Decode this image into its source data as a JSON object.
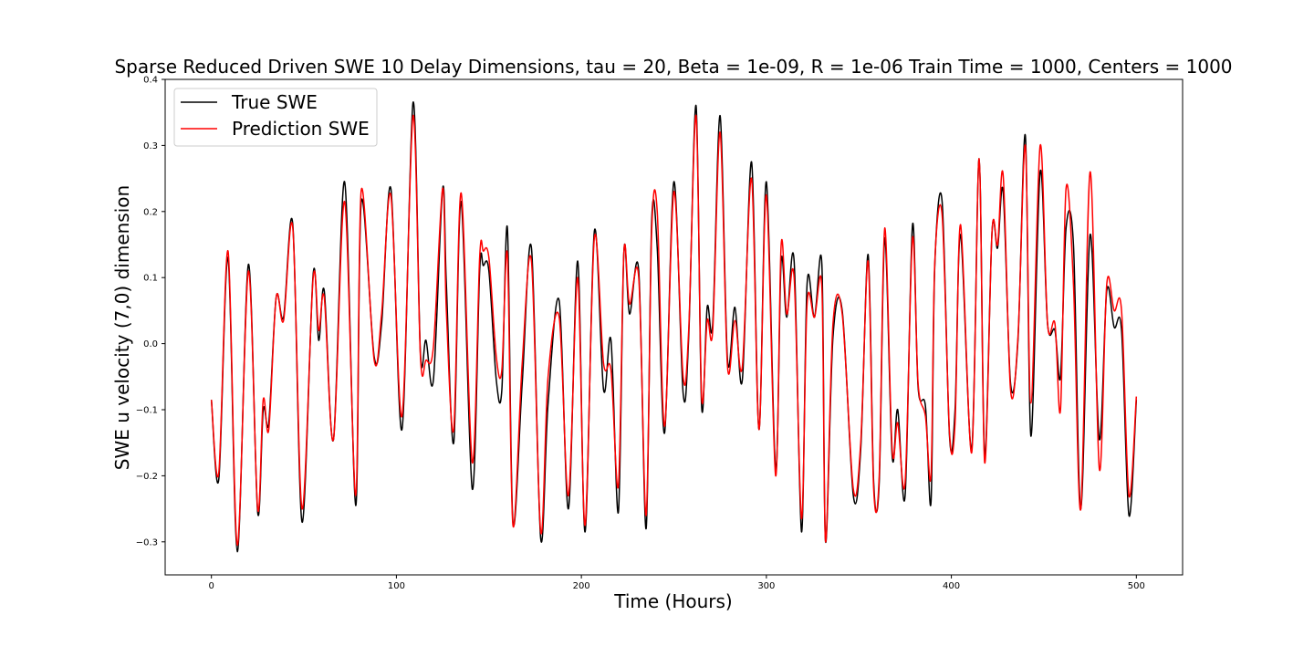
{
  "chart_data": {
    "type": "line",
    "title": "Sparse Reduced Driven SWE 10 Delay Dimensions, tau = 20, Beta = 1e-09, R = 1e-06 Train Time = 1000, Centers = 1000",
    "xlabel": "Time (Hours)",
    "ylabel": "SWE u velocity (7,0) dimension",
    "xlim": [
      -25,
      525
    ],
    "ylim": [
      -0.35,
      0.4
    ],
    "xticks": [
      0,
      100,
      200,
      300,
      400,
      500
    ],
    "yticks": [
      -0.3,
      -0.2,
      -0.1,
      0.0,
      0.1,
      0.2,
      0.3,
      0.4
    ],
    "ytick_labels": [
      "−0.3",
      "−0.2",
      "−0.1",
      "0.0",
      "0.1",
      "0.2",
      "0.3",
      "0.4"
    ],
    "grid": false,
    "legend": {
      "position": "top-left"
    },
    "colors": {
      "true": "#000000",
      "prediction": "#ff0000"
    },
    "series": [
      {
        "name": "True SWE",
        "key": "true",
        "x": [
          0,
          4,
          9,
          14,
          20,
          25,
          28,
          31,
          35,
          39,
          44,
          49,
          55,
          58,
          61,
          66,
          72,
          78,
          81,
          88,
          92,
          97,
          103,
          109,
          113,
          116,
          120,
          125,
          127,
          131,
          135,
          141,
          145,
          147,
          150,
          154,
          157,
          160,
          163,
          168,
          173,
          178,
          182,
          188,
          193,
          198,
          202,
          207,
          212,
          216,
          220,
          223,
          226,
          231,
          235,
          238,
          241,
          245,
          250,
          255,
          258,
          262,
          265,
          268,
          271,
          275,
          279,
          283,
          287,
          292,
          296,
          300,
          305,
          308,
          311,
          315,
          319,
          322,
          326,
          330,
          332,
          336,
          341,
          347,
          351,
          355,
          358,
          361,
          364,
          368,
          371,
          375,
          379,
          382,
          386,
          389,
          391,
          395,
          399,
          402,
          405,
          411,
          415,
          418,
          422,
          425,
          428,
          432,
          436,
          440,
          443,
          448,
          452,
          456,
          459,
          462,
          466,
          470,
          475,
          480,
          484,
          488,
          492,
          496,
          500
        ],
        "y": [
          -0.085,
          -0.205,
          0.13,
          -0.315,
          0.12,
          -0.255,
          -0.1,
          -0.12,
          0.07,
          0.04,
          0.18,
          -0.27,
          0.105,
          0.005,
          0.08,
          -0.145,
          0.245,
          -0.245,
          0.215,
          -0.02,
          0.03,
          0.235,
          -0.13,
          0.365,
          -0.015,
          0.005,
          -0.055,
          0.235,
          0.09,
          -0.15,
          0.215,
          -0.22,
          0.11,
          0.118,
          0.11,
          -0.055,
          -0.07,
          0.175,
          -0.27,
          -0.06,
          0.145,
          -0.295,
          -0.09,
          0.065,
          -0.25,
          0.125,
          -0.285,
          0.17,
          -0.07,
          0.005,
          -0.255,
          0.14,
          0.045,
          0.11,
          -0.28,
          0.185,
          0.145,
          -0.135,
          0.245,
          -0.075,
          0.01,
          0.36,
          -0.095,
          0.055,
          0.03,
          0.345,
          -0.025,
          0.055,
          -0.055,
          0.275,
          -0.13,
          0.245,
          -0.19,
          0.125,
          0.04,
          0.125,
          -0.285,
          0.09,
          0.04,
          0.12,
          -0.3,
          0.01,
          0.05,
          -0.23,
          -0.16,
          0.135,
          -0.21,
          -0.21,
          0.16,
          -0.17,
          -0.1,
          -0.23,
          0.18,
          -0.065,
          -0.095,
          -0.24,
          0.115,
          0.215,
          -0.14,
          -0.1,
          0.165,
          -0.16,
          0.28,
          -0.17,
          0.17,
          0.145,
          0.23,
          -0.06,
          0.005,
          0.315,
          -0.14,
          0.26,
          0.03,
          0.02,
          -0.05,
          0.175,
          0.15,
          -0.25,
          0.165,
          -0.145,
          0.08,
          0.025,
          0.02,
          -0.26,
          -0.085
        ]
      },
      {
        "name": "Prediction SWE",
        "key": "prediction",
        "x": [
          0,
          4,
          9,
          14,
          20,
          25,
          28,
          31,
          35,
          39,
          44,
          49,
          55,
          58,
          61,
          66,
          72,
          78,
          81,
          88,
          92,
          97,
          103,
          109,
          113,
          116,
          120,
          125,
          127,
          131,
          135,
          141,
          145,
          147,
          150,
          154,
          157,
          160,
          163,
          168,
          173,
          178,
          182,
          188,
          193,
          198,
          202,
          207,
          212,
          216,
          220,
          223,
          226,
          231,
          235,
          238,
          241,
          245,
          250,
          255,
          258,
          262,
          265,
          268,
          271,
          275,
          279,
          283,
          287,
          292,
          296,
          300,
          305,
          308,
          311,
          315,
          319,
          322,
          326,
          330,
          332,
          336,
          341,
          347,
          351,
          355,
          358,
          361,
          364,
          368,
          371,
          375,
          379,
          382,
          386,
          389,
          391,
          395,
          399,
          402,
          405,
          411,
          415,
          418,
          422,
          425,
          428,
          432,
          436,
          440,
          443,
          448,
          452,
          456,
          459,
          462,
          466,
          470,
          475,
          480,
          484,
          488,
          492,
          496,
          500
        ],
        "y": [
          -0.085,
          -0.195,
          0.14,
          -0.305,
          0.11,
          -0.25,
          -0.085,
          -0.13,
          0.07,
          0.035,
          0.175,
          -0.25,
          0.1,
          0.02,
          0.07,
          -0.145,
          0.215,
          -0.23,
          0.232,
          -0.025,
          0.045,
          0.225,
          -0.11,
          0.345,
          -0.02,
          -0.025,
          -0.005,
          0.235,
          0.05,
          -0.13,
          0.228,
          -0.18,
          0.13,
          0.14,
          0.13,
          -0.02,
          -0.04,
          0.135,
          -0.275,
          -0.03,
          0.125,
          -0.285,
          -0.05,
          0.04,
          -0.23,
          0.1,
          -0.275,
          0.16,
          -0.03,
          -0.04,
          -0.215,
          0.14,
          0.06,
          0.1,
          -0.26,
          0.17,
          0.2,
          -0.125,
          0.23,
          -0.05,
          0.02,
          0.345,
          -0.08,
          0.035,
          0.02,
          0.32,
          -0.035,
          0.035,
          -0.035,
          0.25,
          -0.13,
          0.225,
          -0.2,
          0.15,
          0.045,
          0.1,
          -0.265,
          0.06,
          0.04,
          0.085,
          -0.3,
          0.03,
          0.045,
          -0.22,
          -0.15,
          0.125,
          -0.22,
          -0.2,
          0.175,
          -0.16,
          -0.12,
          -0.21,
          0.16,
          -0.06,
          -0.11,
          -0.2,
          0.12,
          0.195,
          -0.135,
          -0.12,
          0.18,
          -0.165,
          0.28,
          -0.18,
          0.17,
          0.15,
          0.255,
          -0.07,
          0.01,
          0.3,
          -0.09,
          0.3,
          0.03,
          0.03,
          -0.1,
          0.235,
          0.09,
          -0.25,
          0.26,
          -0.19,
          0.09,
          0.05,
          0.05,
          -0.23,
          -0.08
        ]
      }
    ]
  }
}
